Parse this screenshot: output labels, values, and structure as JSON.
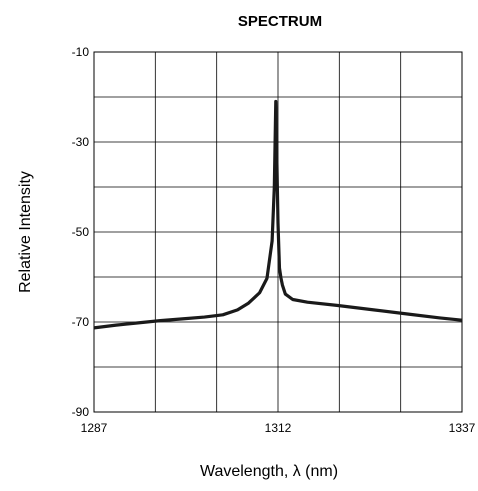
{
  "chart_data": {
    "type": "line",
    "title": "SPECTRUM",
    "xlabel": "Wavelength, λ (nm)",
    "ylabel": "Relative Intensity",
    "xlim": [
      1287,
      1337
    ],
    "ylim": [
      -90,
      -10
    ],
    "x_ticks": [
      1287,
      1312,
      1337
    ],
    "x_tick_labels": [
      "1287",
      "1312",
      "1337"
    ],
    "y_ticks": [
      -90,
      -70,
      -50,
      -30,
      -10
    ],
    "y_tick_labels": [
      "-90",
      "-70",
      "-50",
      "-30",
      "-10"
    ],
    "x_grid": [
      1287,
      1295.33,
      1303.67,
      1312,
      1320.33,
      1328.67,
      1337
    ],
    "y_grid": [
      -90,
      -80,
      -70,
      -60,
      -50,
      -40,
      -30,
      -20,
      -10
    ],
    "grid": true,
    "legend": "none",
    "line_color": "#1a1a1a",
    "series": [
      {
        "x": [
          1287,
          1290,
          1293,
          1296,
          1299,
          1302,
          1304.5,
          1306.5,
          1308,
          1309.5,
          1310.5,
          1311.2,
          1311.5,
          1311.7,
          1312,
          1312.2,
          1312.4,
          1312.6,
          1313,
          1314,
          1316,
          1320,
          1325,
          1330,
          1334,
          1337
        ],
        "y": [
          -71.3,
          -70.7,
          -70.2,
          -69.7,
          -69.3,
          -68.9,
          -68.4,
          -67.3,
          -65.8,
          -63.5,
          -60.3,
          -52.0,
          -40.0,
          -21.0,
          -48.0,
          -58.0,
          -60.2,
          -61.8,
          -63.8,
          -65.0,
          -65.6,
          -66.3,
          -67.3,
          -68.3,
          -69.1,
          -69.6
        ]
      }
    ]
  }
}
